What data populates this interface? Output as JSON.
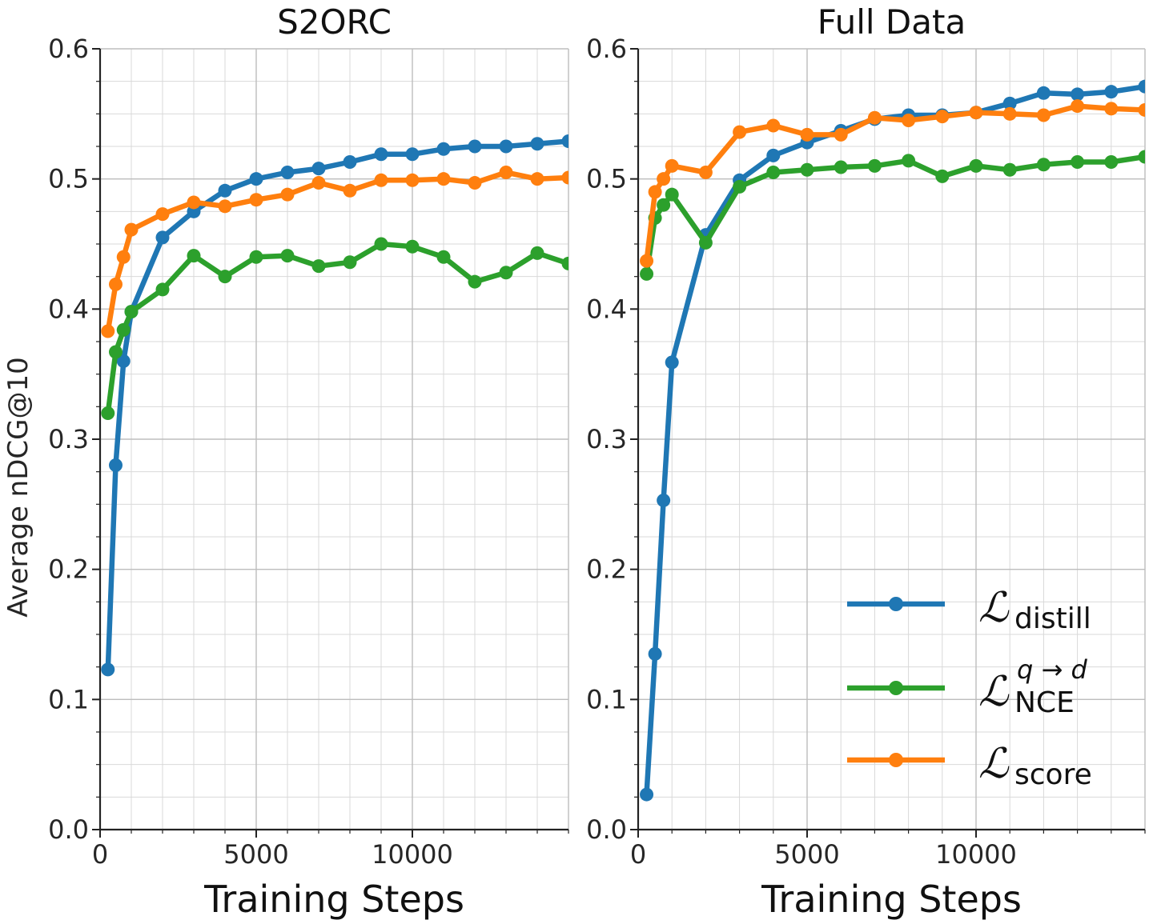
{
  "chart_data": [
    {
      "type": "line",
      "title": "S2ORC",
      "xlabel": "Training Steps",
      "ylabel": "Average nDCG@10",
      "xlim": [
        0,
        15000
      ],
      "ylim": [
        0.0,
        0.6
      ],
      "xticks": [
        "0",
        "5000",
        "10000"
      ],
      "yticks": [
        "0.0",
        "0.1",
        "0.2",
        "0.3",
        "0.4",
        "0.5",
        "0.6"
      ],
      "grid": true,
      "series": [
        {
          "key": "distill",
          "color": "#1f77b4",
          "x": [
            250,
            500,
            750,
            1000,
            2000,
            3000,
            4000,
            5000,
            6000,
            7000,
            8000,
            9000,
            10000,
            11000,
            12000,
            13000,
            14000,
            15000
          ],
          "y": [
            0.123,
            0.28,
            0.36,
            0.398,
            0.455,
            0.475,
            0.491,
            0.5,
            0.505,
            0.508,
            0.513,
            0.519,
            0.519,
            0.523,
            0.525,
            0.525,
            0.527,
            0.529
          ]
        },
        {
          "key": "nce",
          "color": "#2ca02c",
          "x": [
            250,
            500,
            750,
            1000,
            2000,
            3000,
            4000,
            5000,
            6000,
            7000,
            8000,
            9000,
            10000,
            11000,
            12000,
            13000,
            14000,
            15000
          ],
          "y": [
            0.32,
            0.367,
            0.384,
            0.398,
            0.415,
            0.441,
            0.425,
            0.44,
            0.441,
            0.433,
            0.436,
            0.45,
            0.448,
            0.44,
            0.421,
            0.428,
            0.443,
            0.435
          ]
        },
        {
          "key": "score",
          "color": "#ff7f0e",
          "x": [
            250,
            500,
            750,
            1000,
            2000,
            3000,
            4000,
            5000,
            6000,
            7000,
            8000,
            9000,
            10000,
            11000,
            12000,
            13000,
            14000,
            15000
          ],
          "y": [
            0.383,
            0.419,
            0.44,
            0.461,
            0.473,
            0.482,
            0.479,
            0.484,
            0.488,
            0.497,
            0.491,
            0.499,
            0.499,
            0.5,
            0.497,
            0.505,
            0.5,
            0.501
          ]
        }
      ]
    },
    {
      "type": "line",
      "title": "Full Data",
      "xlabel": "Training Steps",
      "xlim": [
        0,
        15000
      ],
      "ylim": [
        0.0,
        0.6
      ],
      "xticks": [
        "0",
        "5000",
        "10000"
      ],
      "yticks": [
        "0.0",
        "0.1",
        "0.2",
        "0.3",
        "0.4",
        "0.5",
        "0.6"
      ],
      "grid": true,
      "legend": "lower-right",
      "series": [
        {
          "key": "distill",
          "color": "#1f77b4",
          "x": [
            250,
            500,
            750,
            1000,
            2000,
            3000,
            4000,
            5000,
            6000,
            7000,
            8000,
            9000,
            10000,
            11000,
            12000,
            13000,
            14000,
            15000
          ],
          "y": [
            0.027,
            0.135,
            0.253,
            0.359,
            0.457,
            0.499,
            0.518,
            0.528,
            0.537,
            0.546,
            0.549,
            0.549,
            0.551,
            0.558,
            0.566,
            0.565,
            0.567,
            0.571
          ]
        },
        {
          "key": "nce",
          "color": "#2ca02c",
          "x": [
            250,
            500,
            750,
            1000,
            2000,
            3000,
            4000,
            5000,
            6000,
            7000,
            8000,
            9000,
            10000,
            11000,
            12000,
            13000,
            14000,
            15000
          ],
          "y": [
            0.427,
            0.47,
            0.48,
            0.488,
            0.451,
            0.494,
            0.505,
            0.507,
            0.509,
            0.51,
            0.514,
            0.502,
            0.51,
            0.507,
            0.511,
            0.513,
            0.513,
            0.517
          ]
        },
        {
          "key": "score",
          "color": "#ff7f0e",
          "x": [
            250,
            500,
            750,
            1000,
            2000,
            3000,
            4000,
            5000,
            6000,
            7000,
            8000,
            9000,
            10000,
            11000,
            12000,
            13000,
            14000,
            15000
          ],
          "y": [
            0.437,
            0.49,
            0.5,
            0.51,
            0.505,
            0.536,
            0.541,
            0.534,
            0.534,
            0.547,
            0.545,
            0.548,
            0.551,
            0.55,
            0.549,
            0.556,
            0.554,
            0.553
          ]
        }
      ]
    }
  ],
  "legend": {
    "entries": [
      {
        "key": "distill",
        "symbol": "ℒ",
        "sub": "distill",
        "sup": "",
        "color": "#1f77b4"
      },
      {
        "key": "nce",
        "symbol": "ℒ",
        "sub": "NCE",
        "sup": "q → d",
        "color": "#2ca02c"
      },
      {
        "key": "score",
        "symbol": "ℒ",
        "sub": "score",
        "sup": "",
        "color": "#ff7f0e"
      }
    ]
  }
}
